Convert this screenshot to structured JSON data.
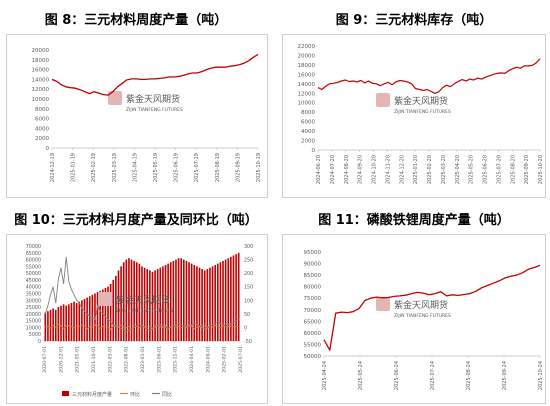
{
  "watermark": {
    "name": "紫金天风期货",
    "sub": "ZIJIN TIANFENG FUTURES",
    "color": "#e5b5b5"
  },
  "chart_data": [
    {
      "id": "fig8",
      "type": "line",
      "title": "图 8：三元材料周度产量（吨）",
      "color": "#c00000",
      "ylim": [
        0,
        20000
      ],
      "yticks": [
        0,
        2000,
        4000,
        6000,
        8000,
        10000,
        12000,
        14000,
        16000,
        18000,
        20000
      ],
      "xticks": [
        "2024-12-19",
        "2025-01-19",
        "2025-02-19",
        "2025-03-19",
        "2025-04-19",
        "2025-05-19",
        "2025-06-19",
        "2025-07-19",
        "2025-08-19",
        "2025-09-19",
        "2025-10-19"
      ],
      "values": [
        14000,
        13600,
        12900,
        12500,
        12300,
        12200,
        11900,
        11500,
        11100,
        11500,
        11200,
        10900,
        10800,
        11500,
        12500,
        13200,
        13900,
        14100,
        14100,
        14000,
        14000,
        14100,
        14100,
        14200,
        14300,
        14500,
        14500,
        14600,
        14800,
        15100,
        15300,
        15300,
        15600,
        16000,
        16300,
        16500,
        16500,
        16500,
        16700,
        16800,
        17000,
        17300,
        17800,
        18500,
        19100
      ]
    },
    {
      "id": "fig9",
      "type": "line",
      "title": "图 9：三元材料库存（吨）",
      "color": "#c00000",
      "ylim": [
        0,
        22000
      ],
      "yticks": [
        0,
        2000,
        4000,
        6000,
        8000,
        10000,
        12000,
        14000,
        16000,
        18000,
        20000,
        22000
      ],
      "xticks": [
        "2024-06-20",
        "2024-07-20",
        "2024-08-20",
        "2024-09-20",
        "2024-10-20",
        "2024-11-20",
        "2024-12-20",
        "2025-01-20",
        "2025-02-20",
        "2025-03-20",
        "2025-04-20",
        "2025-05-20",
        "2025-06-20",
        "2025-07-20",
        "2025-08-20",
        "2025-09-20",
        "2025-10-20"
      ],
      "values": [
        13200,
        12800,
        13500,
        14000,
        14100,
        14300,
        14600,
        14800,
        14500,
        14600,
        14400,
        14700,
        14200,
        14600,
        14100,
        14000,
        13600,
        14000,
        14300,
        13800,
        14400,
        14700,
        14600,
        14400,
        14000,
        13000,
        12800,
        12600,
        12800,
        12400,
        12000,
        12300,
        13200,
        13700,
        13400,
        14000,
        14500,
        14900,
        14600,
        15000,
        14800,
        15200,
        15000,
        15400,
        15700,
        16000,
        16200,
        16300,
        16200,
        16800,
        17200,
        17500,
        17300,
        17800,
        17800,
        17900,
        18400,
        19300
      ]
    },
    {
      "id": "fig10",
      "type": "bar+line",
      "title": "图 10：三元材料月度产量及同环比（吨）",
      "ylim": [
        0,
        70000
      ],
      "yticks": [
        0,
        5000,
        10000,
        15000,
        20000,
        25000,
        30000,
        35000,
        40000,
        45000,
        50000,
        55000,
        60000,
        65000,
        70000
      ],
      "y2lim": [
        -50,
        300
      ],
      "y2ticks": [
        -50,
        0,
        50,
        100,
        150,
        200,
        250,
        300
      ],
      "xticks": [
        "2020-07-01",
        "2020-12-01",
        "2021-05-01",
        "2021-10-01",
        "2022-03-01",
        "2022-08-01",
        "2023-01-01",
        "2023-06-01",
        "2023-11-01",
        "2024-04-01",
        "2024-09-01",
        "2025-02-01",
        "2025-07-01"
      ],
      "series": [
        {
          "name": "三元材料月度产量",
          "color": "#c00000",
          "values": [
            21000,
            22000,
            23000,
            24000,
            23000,
            25000,
            26000,
            27000,
            26000,
            27000,
            28000,
            29000,
            28000,
            29000,
            30000,
            31000,
            32000,
            33000,
            34000,
            35000,
            36000,
            37000,
            38000,
            39000,
            40000,
            42000,
            45000,
            48000,
            52000,
            55000,
            58000,
            60000,
            61000,
            60000,
            59000,
            58000,
            57000,
            55000,
            54000,
            53000,
            52000,
            51000,
            52000,
            53000,
            54000,
            55000,
            56000,
            57000,
            58000,
            59000,
            60000,
            61000,
            61000,
            60000,
            59000,
            58000,
            57000,
            56000,
            55000,
            54000,
            53000,
            52000,
            53000,
            54000,
            55000,
            56000,
            57000,
            58000,
            59000,
            60000,
            61000,
            62000,
            63000,
            64000,
            65000
          ]
        },
        {
          "name": "环比",
          "color": "#e07b39",
          "values": [
            5,
            4,
            -3,
            8,
            2,
            10,
            6,
            -4,
            5,
            7,
            3,
            -2,
            6,
            4,
            8,
            5,
            -5,
            3,
            2,
            9,
            7,
            -3,
            4,
            6,
            2,
            -6,
            5,
            3,
            4,
            7,
            2,
            -1,
            3,
            5,
            8,
            4,
            -2,
            6,
            3,
            2,
            5,
            -3,
            4,
            7,
            3,
            1,
            6,
            -4,
            3,
            5,
            2,
            4,
            -2,
            6,
            3,
            8,
            4,
            -5,
            2,
            3,
            6,
            4,
            -3,
            5,
            2,
            7,
            3,
            -2,
            4,
            5,
            3,
            6,
            4,
            2,
            5
          ]
        },
        {
          "name": "同比",
          "color": "#808080",
          "values": [
            50,
            80,
            120,
            150,
            90,
            180,
            220,
            160,
            260,
            170,
            140,
            120,
            100,
            90,
            70,
            60,
            50,
            40,
            35,
            30,
            80,
            60,
            50,
            40,
            30,
            20,
            10,
            5,
            0,
            -5,
            -10,
            -15,
            -10,
            -5,
            0,
            5,
            10,
            5,
            0,
            -5,
            -10,
            -5,
            0,
            5,
            10,
            5,
            0,
            -5,
            0,
            5,
            10,
            15,
            10,
            5,
            0,
            5,
            10,
            15,
            10,
            5,
            0,
            -5,
            0,
            5,
            10,
            15,
            20,
            15,
            10,
            5,
            10,
            15,
            20,
            25,
            30
          ]
        }
      ]
    },
    {
      "id": "fig11",
      "type": "line",
      "title": "图 11：磷酸铁锂周度产量（吨）",
      "color": "#c00000",
      "ylim": [
        50000,
        95000
      ],
      "yticks": [
        50000,
        55000,
        60000,
        65000,
        70000,
        75000,
        80000,
        85000,
        90000,
        95000
      ],
      "xticks": [
        "2025-04-24",
        "2025-05-24",
        "2025-06-24",
        "2025-07-24",
        "2025-08-24",
        "2025-09-24",
        "2025-10-24"
      ],
      "values": [
        57000,
        52500,
        68500,
        69000,
        68800,
        69200,
        70500,
        74000,
        75000,
        75500,
        75200,
        75300,
        75800,
        76000,
        76300,
        77000,
        77500,
        77200,
        76500,
        77000,
        77800,
        76000,
        76500,
        76200,
        76600,
        77000,
        78000,
        79500,
        80500,
        81500,
        82500,
        83800,
        84500,
        85000,
        86000,
        87500,
        88300,
        89200
      ]
    }
  ]
}
